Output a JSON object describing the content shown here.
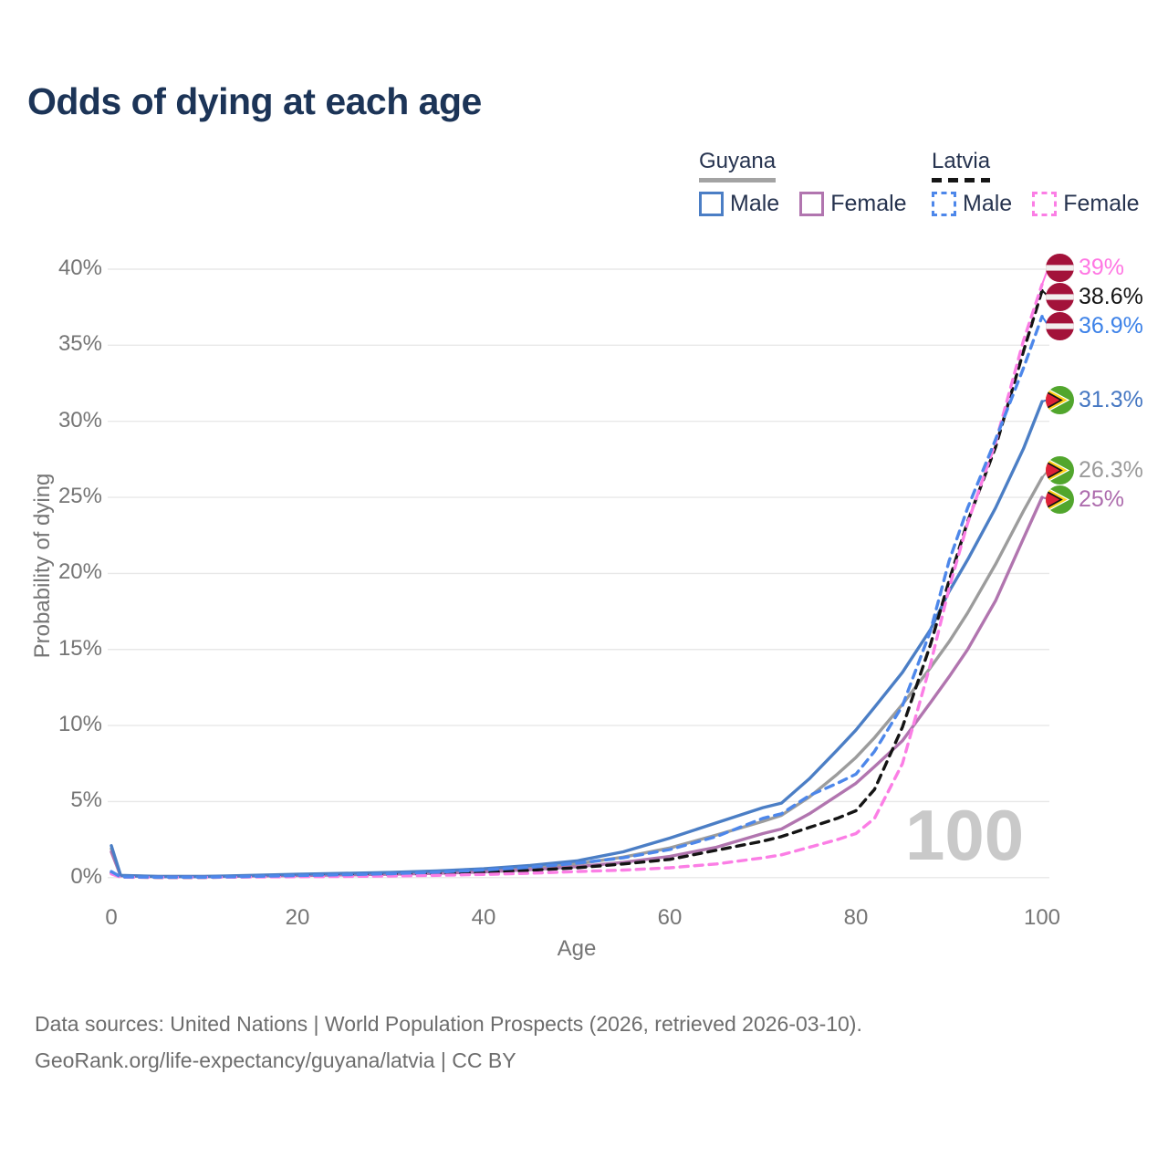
{
  "title": "Odds of dying at each age",
  "watermark": "100",
  "legend": {
    "groups": [
      {
        "country": "Guyana",
        "line_style": "solid",
        "bar_color": "#a3a3a3",
        "items": [
          {
            "label": "Male",
            "color": "#4b7ec5",
            "style": "solid"
          },
          {
            "label": "Female",
            "color": "#b175af",
            "style": "solid"
          }
        ]
      },
      {
        "country": "Latvia",
        "line_style": "dashed",
        "bar_color": "#161616",
        "items": [
          {
            "label": "Male",
            "color": "#4d87ea",
            "style": "dashed"
          },
          {
            "label": "Female",
            "color": "#fb7ee5",
            "style": "dashed"
          }
        ]
      }
    ]
  },
  "axes": {
    "y_title": "Probability of dying",
    "x_title": "Age",
    "y_ticks": [
      "40%",
      "35%",
      "30%",
      "25%",
      "20%",
      "15%",
      "10%",
      "5%",
      "0%"
    ],
    "x_ticks": [
      "0",
      "20",
      "40",
      "60",
      "80",
      "100"
    ]
  },
  "end_labels": [
    {
      "value": "39%",
      "country": "Latvia",
      "series": "Latvia Female",
      "color": "#ff77e3",
      "flag": "latvia-flag",
      "flag_ref": "#flag-latvia"
    },
    {
      "value": "38.6%",
      "country": "Latvia",
      "series": "Latvia Both sexes",
      "color": "#141414",
      "flag": "latvia-flag",
      "flag_ref": "#flag-latvia"
    },
    {
      "value": "36.9%",
      "country": "Latvia",
      "series": "Latvia Male",
      "color": "#3d82e8",
      "flag": "latvia-flag",
      "flag_ref": "#flag-latvia"
    },
    {
      "value": "31.3%",
      "country": "Guyana",
      "series": "Guyana Male",
      "color": "#4577c2",
      "flag": "guyana-flag",
      "flag_ref": "#flag-guyana"
    },
    {
      "value": "26.3%",
      "country": "Guyana",
      "series": "Guyana Both sexes",
      "color": "#9b9b9b",
      "flag": "guyana-flag",
      "flag_ref": "#flag-guyana"
    },
    {
      "value": "25%",
      "country": "Guyana",
      "series": "Guyana Female",
      "color": "#ad6cad",
      "flag": "guyana-flag",
      "flag_ref": "#flag-guyana"
    }
  ],
  "footer": {
    "line1": "Data sources: United Nations | World Population Prospects (2026, retrieved 2026-03-10).",
    "line2": "GeoRank.org/life-expectancy/guyana/latvia | CC BY"
  },
  "chart_data": {
    "type": "line",
    "title": "Odds of dying at each age",
    "xlabel": "Age",
    "ylabel": "Probability of dying",
    "xlim": [
      0,
      100
    ],
    "ylim": [
      0,
      40
    ],
    "y_unit": "%",
    "grid": "horizontal",
    "legend_position": "top-right",
    "x": [
      0,
      1,
      5,
      10,
      15,
      20,
      25,
      30,
      35,
      40,
      45,
      50,
      55,
      60,
      65,
      70,
      72,
      75,
      78,
      80,
      82,
      85,
      88,
      90,
      92,
      95,
      98,
      100
    ],
    "series": [
      {
        "name": "Guyana Both sexes",
        "color": "#9c9c9c",
        "dash": "solid",
        "end_value": 26.3,
        "values": [
          1.9,
          0.13,
          0.07,
          0.07,
          0.12,
          0.18,
          0.23,
          0.28,
          0.36,
          0.48,
          0.65,
          0.9,
          1.35,
          1.95,
          2.8,
          3.7,
          4.1,
          5.3,
          6.8,
          7.9,
          9.2,
          11.4,
          13.8,
          15.5,
          17.4,
          20.6,
          24.1,
          26.3
        ]
      },
      {
        "name": "Guyana Female",
        "color": "#b175af",
        "dash": "solid",
        "end_value": 25.0,
        "values": [
          1.7,
          0.12,
          0.06,
          0.06,
          0.1,
          0.14,
          0.18,
          0.22,
          0.29,
          0.38,
          0.52,
          0.72,
          1.0,
          1.4,
          2.0,
          2.9,
          3.2,
          4.2,
          5.4,
          6.2,
          7.3,
          9.0,
          11.5,
          13.2,
          15.0,
          18.2,
          22.3,
          25.0
        ]
      },
      {
        "name": "Guyana Male",
        "color": "#4b7ec5",
        "dash": "solid",
        "end_value": 31.3,
        "values": [
          2.1,
          0.15,
          0.08,
          0.08,
          0.15,
          0.22,
          0.28,
          0.34,
          0.44,
          0.58,
          0.8,
          1.1,
          1.7,
          2.6,
          3.6,
          4.6,
          4.9,
          6.5,
          8.4,
          9.7,
          11.2,
          13.5,
          16.3,
          18.8,
          20.9,
          24.3,
          28.2,
          31.3
        ]
      },
      {
        "name": "Latvia Both sexes",
        "color": "#141414",
        "dash": "dashed",
        "end_value": 38.6,
        "values": [
          0.3,
          0.04,
          0.02,
          0.02,
          0.06,
          0.1,
          0.14,
          0.19,
          0.26,
          0.35,
          0.48,
          0.65,
          0.9,
          1.2,
          1.8,
          2.4,
          2.7,
          3.3,
          3.9,
          4.4,
          5.8,
          9.9,
          15.3,
          19.5,
          23.4,
          28.3,
          34.6,
          38.6
        ]
      },
      {
        "name": "Latvia Female",
        "color": "#fb7ee5",
        "dash": "dashed",
        "end_value": 39.0,
        "values": [
          0.25,
          0.03,
          0.02,
          0.02,
          0.04,
          0.06,
          0.08,
          0.11,
          0.15,
          0.21,
          0.29,
          0.4,
          0.5,
          0.65,
          0.9,
          1.3,
          1.5,
          2.0,
          2.5,
          2.9,
          3.9,
          7.5,
          14.0,
          19.0,
          23.3,
          28.6,
          35.3,
          39.0
        ]
      },
      {
        "name": "Latvia Male",
        "color": "#4d87ea",
        "dash": "dashed",
        "end_value": 36.9,
        "values": [
          0.4,
          0.05,
          0.03,
          0.03,
          0.08,
          0.14,
          0.19,
          0.26,
          0.36,
          0.5,
          0.68,
          0.95,
          1.3,
          1.85,
          2.7,
          3.9,
          4.2,
          5.4,
          6.2,
          6.8,
          8.3,
          11.3,
          16.2,
          20.8,
          24.3,
          28.8,
          33.5,
          36.9
        ]
      }
    ]
  }
}
